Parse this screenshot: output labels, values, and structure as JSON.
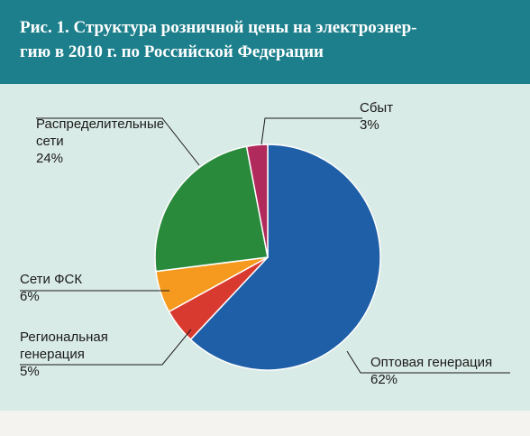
{
  "title_line1": "Рис. 1. Структура розничной цены на электроэнер-",
  "title_line2": "гию в 2010 г. по Российской Федерации",
  "chart_data": {
    "type": "pie",
    "title": "Рис. 1. Структура розничной цены на электроэнергию в 2010 г. по Российской Федерации",
    "slices": [
      {
        "name": "Оптовая генерация",
        "value": 62,
        "value_label": "62%",
        "color": "#1f5fa8"
      },
      {
        "name": "Региональная генерация",
        "value": 5,
        "value_label": "5%",
        "color": "#d93a30"
      },
      {
        "name": "Сети ФСК",
        "value": 6,
        "value_label": "6%",
        "color": "#f59a1e"
      },
      {
        "name": "Распределительные сети",
        "value": 24,
        "value_label": "24%",
        "color": "#2a8a3c"
      },
      {
        "name": "Сбыт",
        "value": 3,
        "value_label": "3%",
        "color": "#b02a5c"
      }
    ],
    "label_lines": {
      "opt": [
        "Оптовая генерация"
      ],
      "reg": [
        "Региональная",
        "генерация"
      ],
      "fsk": [
        "Сети ФСК"
      ],
      "dist": [
        "Распределительные",
        "сети"
      ],
      "sbyt": [
        "Сбыт"
      ]
    }
  }
}
